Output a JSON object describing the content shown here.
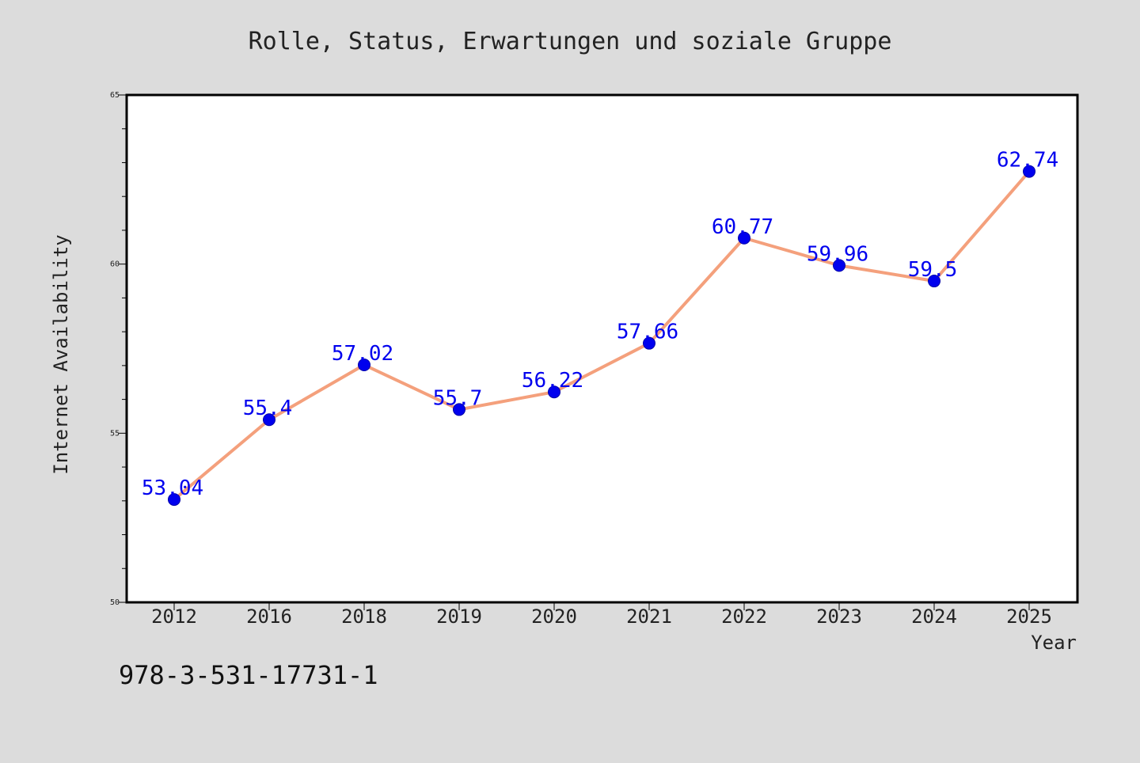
{
  "chart_data": {
    "type": "line",
    "title": "Rolle, Status, Erwartungen und soziale Gruppe",
    "xlabel": "Year",
    "ylabel": "Internet Availability",
    "categories": [
      "2012",
      "2016",
      "2018",
      "2019",
      "2020",
      "2021",
      "2022",
      "2023",
      "2024",
      "2025"
    ],
    "series": [
      {
        "values": [
          53.04,
          55.4,
          57.02,
          55.7,
          56.22,
          57.66,
          60.77,
          59.96,
          59.5,
          62.74
        ],
        "data_labels": [
          "53.04",
          "55.4",
          "57.02",
          "55.7",
          "56.22",
          "57.66",
          "60.77",
          "59.96",
          "59.5",
          "62.74"
        ]
      }
    ],
    "ylim": [
      50,
      65
    ],
    "y_ticks": [
      50,
      55,
      60,
      65
    ],
    "y_tick_labels": [
      "50",
      "55",
      "60",
      "65"
    ],
    "grid": false,
    "colors": {
      "background": "#dcdcdc",
      "plot_background": "#ffffff",
      "line": "#f4a07c",
      "marker": "#0000ee",
      "data_label": "#0000ee",
      "text": "#222222"
    }
  },
  "footer_text": "978-3-531-17731-1"
}
